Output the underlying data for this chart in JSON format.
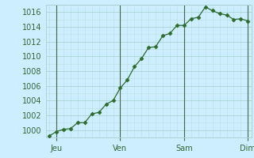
{
  "x_values": [
    0,
    1,
    2,
    3,
    4,
    5,
    6,
    7,
    8,
    9,
    10,
    11,
    12,
    13,
    14,
    15,
    16,
    17,
    18,
    19,
    20,
    21,
    22,
    23,
    24,
    25,
    26,
    27,
    28
  ],
  "y_values": [
    999.2,
    999.8,
    1000.1,
    1000.2,
    1001.0,
    1001.0,
    1002.2,
    1002.4,
    1003.5,
    1004.0,
    1005.7,
    1006.8,
    1008.6,
    1009.7,
    1011.2,
    1011.3,
    1012.8,
    1013.1,
    1014.2,
    1014.2,
    1015.1,
    1015.3,
    1016.7,
    1016.2,
    1015.8,
    1015.6,
    1015.0,
    1015.1,
    1014.8
  ],
  "x_ticks_pos": [
    1,
    10,
    19,
    28
  ],
  "x_tick_labels": [
    "Jeu",
    "Ven",
    "Sam",
    "Dim"
  ],
  "x_vlines": [
    1,
    10,
    19,
    28
  ],
  "y_min": 999,
  "y_max": 1017,
  "y_ticks": [
    1000,
    1002,
    1004,
    1006,
    1008,
    1010,
    1012,
    1014,
    1016
  ],
  "line_color": "#2d6a2d",
  "marker": "D",
  "marker_size": 2.5,
  "bg_color": "#cceeff",
  "grid_major_color": "#aad4d4",
  "grid_minor_color": "#bbdddd",
  "vline_color": "#446644",
  "label_color": "#336633",
  "label_fontsize": 7
}
